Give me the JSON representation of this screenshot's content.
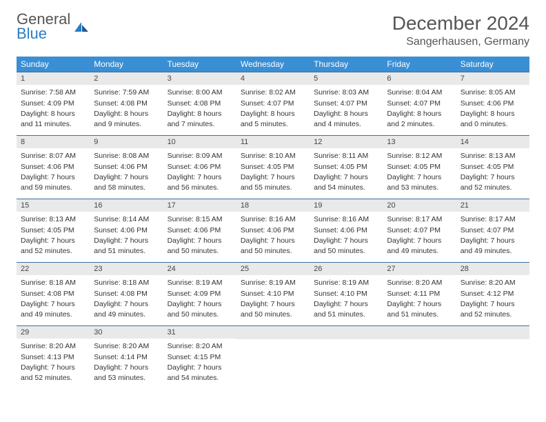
{
  "brand": {
    "name_part1": "General",
    "name_part2": "Blue"
  },
  "title": "December 2024",
  "location": "Sangerhausen, Germany",
  "colors": {
    "header_bg": "#3a8fd4",
    "header_text": "#ffffff",
    "day_head_bg": "#e9e9e9",
    "day_border": "#3a6fa0",
    "brand_blue": "#2a7cc4",
    "text": "#333333"
  },
  "weekdays": [
    "Sunday",
    "Monday",
    "Tuesday",
    "Wednesday",
    "Thursday",
    "Friday",
    "Saturday"
  ],
  "weeks": [
    [
      {
        "n": 1,
        "sunrise": "7:58 AM",
        "sunset": "4:09 PM",
        "daylight": "8 hours and 11 minutes."
      },
      {
        "n": 2,
        "sunrise": "7:59 AM",
        "sunset": "4:08 PM",
        "daylight": "8 hours and 9 minutes."
      },
      {
        "n": 3,
        "sunrise": "8:00 AM",
        "sunset": "4:08 PM",
        "daylight": "8 hours and 7 minutes."
      },
      {
        "n": 4,
        "sunrise": "8:02 AM",
        "sunset": "4:07 PM",
        "daylight": "8 hours and 5 minutes."
      },
      {
        "n": 5,
        "sunrise": "8:03 AM",
        "sunset": "4:07 PM",
        "daylight": "8 hours and 4 minutes."
      },
      {
        "n": 6,
        "sunrise": "8:04 AM",
        "sunset": "4:07 PM",
        "daylight": "8 hours and 2 minutes."
      },
      {
        "n": 7,
        "sunrise": "8:05 AM",
        "sunset": "4:06 PM",
        "daylight": "8 hours and 0 minutes."
      }
    ],
    [
      {
        "n": 8,
        "sunrise": "8:07 AM",
        "sunset": "4:06 PM",
        "daylight": "7 hours and 59 minutes."
      },
      {
        "n": 9,
        "sunrise": "8:08 AM",
        "sunset": "4:06 PM",
        "daylight": "7 hours and 58 minutes."
      },
      {
        "n": 10,
        "sunrise": "8:09 AM",
        "sunset": "4:06 PM",
        "daylight": "7 hours and 56 minutes."
      },
      {
        "n": 11,
        "sunrise": "8:10 AM",
        "sunset": "4:05 PM",
        "daylight": "7 hours and 55 minutes."
      },
      {
        "n": 12,
        "sunrise": "8:11 AM",
        "sunset": "4:05 PM",
        "daylight": "7 hours and 54 minutes."
      },
      {
        "n": 13,
        "sunrise": "8:12 AM",
        "sunset": "4:05 PM",
        "daylight": "7 hours and 53 minutes."
      },
      {
        "n": 14,
        "sunrise": "8:13 AM",
        "sunset": "4:05 PM",
        "daylight": "7 hours and 52 minutes."
      }
    ],
    [
      {
        "n": 15,
        "sunrise": "8:13 AM",
        "sunset": "4:05 PM",
        "daylight": "7 hours and 52 minutes."
      },
      {
        "n": 16,
        "sunrise": "8:14 AM",
        "sunset": "4:06 PM",
        "daylight": "7 hours and 51 minutes."
      },
      {
        "n": 17,
        "sunrise": "8:15 AM",
        "sunset": "4:06 PM",
        "daylight": "7 hours and 50 minutes."
      },
      {
        "n": 18,
        "sunrise": "8:16 AM",
        "sunset": "4:06 PM",
        "daylight": "7 hours and 50 minutes."
      },
      {
        "n": 19,
        "sunrise": "8:16 AM",
        "sunset": "4:06 PM",
        "daylight": "7 hours and 50 minutes."
      },
      {
        "n": 20,
        "sunrise": "8:17 AM",
        "sunset": "4:07 PM",
        "daylight": "7 hours and 49 minutes."
      },
      {
        "n": 21,
        "sunrise": "8:17 AM",
        "sunset": "4:07 PM",
        "daylight": "7 hours and 49 minutes."
      }
    ],
    [
      {
        "n": 22,
        "sunrise": "8:18 AM",
        "sunset": "4:08 PM",
        "daylight": "7 hours and 49 minutes."
      },
      {
        "n": 23,
        "sunrise": "8:18 AM",
        "sunset": "4:08 PM",
        "daylight": "7 hours and 49 minutes."
      },
      {
        "n": 24,
        "sunrise": "8:19 AM",
        "sunset": "4:09 PM",
        "daylight": "7 hours and 50 minutes."
      },
      {
        "n": 25,
        "sunrise": "8:19 AM",
        "sunset": "4:10 PM",
        "daylight": "7 hours and 50 minutes."
      },
      {
        "n": 26,
        "sunrise": "8:19 AM",
        "sunset": "4:10 PM",
        "daylight": "7 hours and 51 minutes."
      },
      {
        "n": 27,
        "sunrise": "8:20 AM",
        "sunset": "4:11 PM",
        "daylight": "7 hours and 51 minutes."
      },
      {
        "n": 28,
        "sunrise": "8:20 AM",
        "sunset": "4:12 PM",
        "daylight": "7 hours and 52 minutes."
      }
    ],
    [
      {
        "n": 29,
        "sunrise": "8:20 AM",
        "sunset": "4:13 PM",
        "daylight": "7 hours and 52 minutes."
      },
      {
        "n": 30,
        "sunrise": "8:20 AM",
        "sunset": "4:14 PM",
        "daylight": "7 hours and 53 minutes."
      },
      {
        "n": 31,
        "sunrise": "8:20 AM",
        "sunset": "4:15 PM",
        "daylight": "7 hours and 54 minutes."
      },
      null,
      null,
      null,
      null
    ]
  ],
  "labels": {
    "sunrise": "Sunrise:",
    "sunset": "Sunset:",
    "daylight": "Daylight:"
  }
}
